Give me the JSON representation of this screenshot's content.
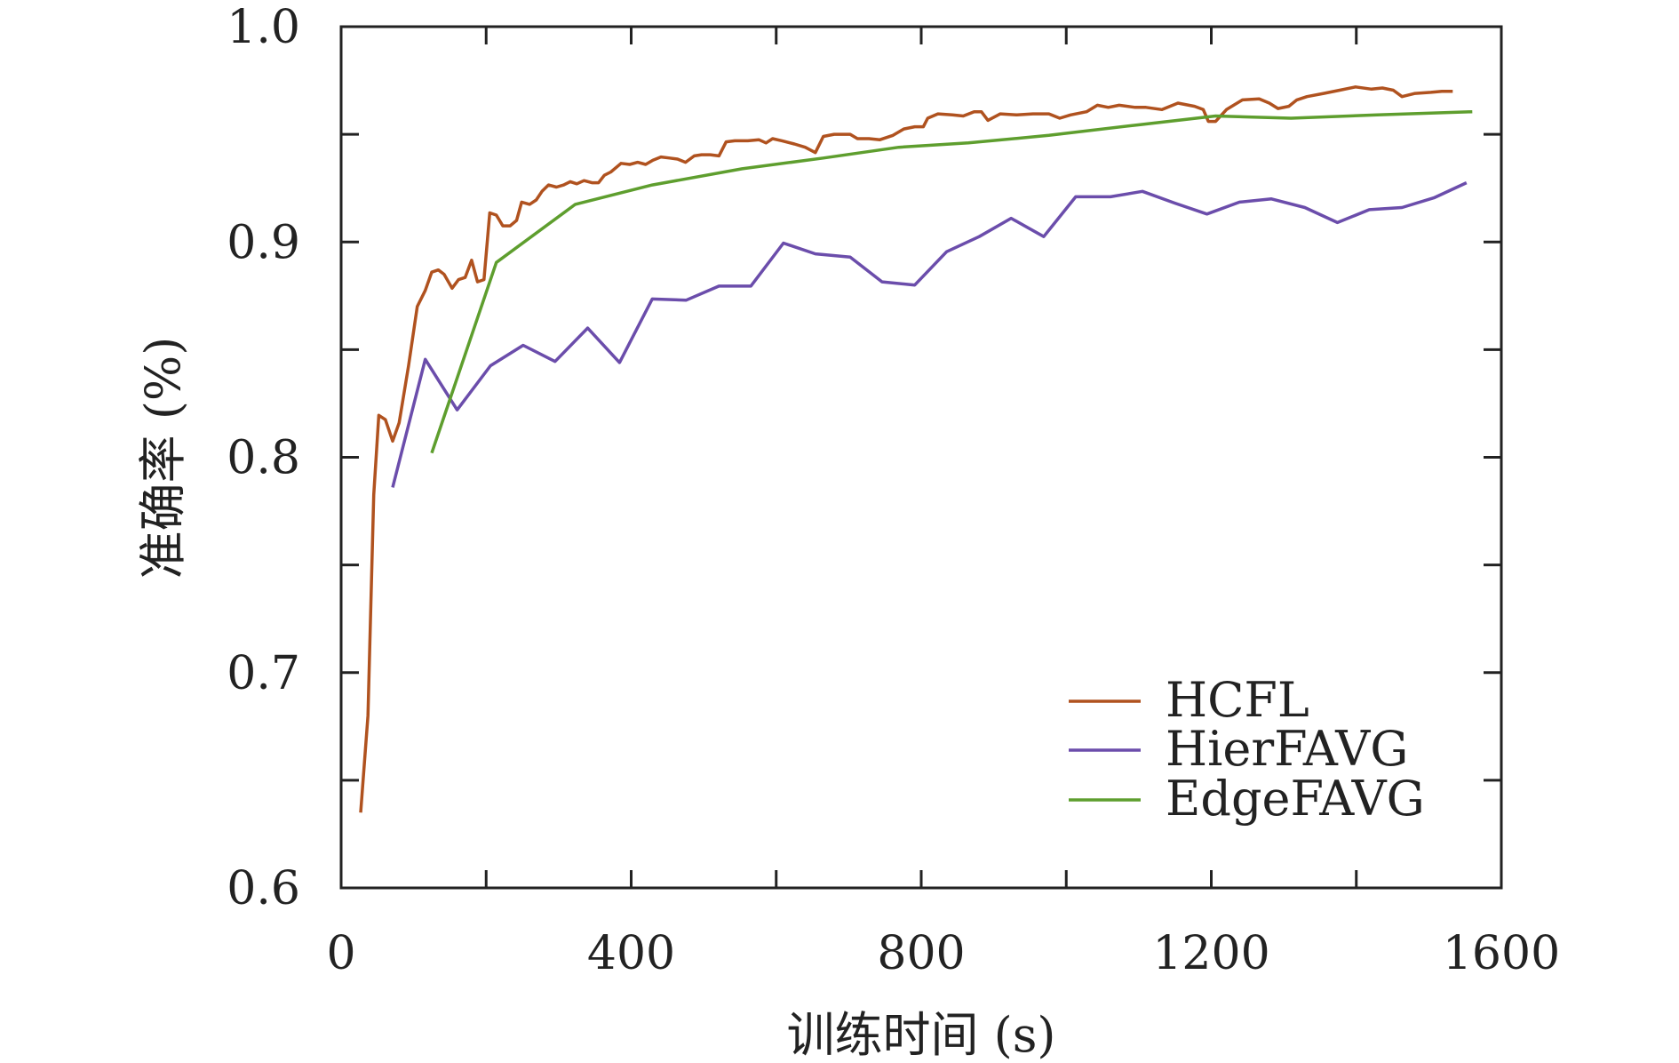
{
  "chart_data": {
    "type": "line",
    "title": "",
    "xlabel": "训练时间 (s)",
    "ylabel": "准确率 (%)",
    "xlim": [
      0,
      1600
    ],
    "ylim": [
      0.6,
      1.0
    ],
    "xticks": [
      "0",
      "400",
      "800",
      "1200",
      "1600"
    ],
    "yticks": [
      "0.6",
      "0.7",
      "0.8",
      "0.9",
      "1.0"
    ],
    "grid": false,
    "legend_position": "bottom-right",
    "series": [
      {
        "name": "HCFL",
        "color": "#B0521F",
        "x": [
          27,
          37,
          45,
          52,
          61,
          71,
          80,
          93,
          105,
          116,
          125,
          134,
          142,
          153,
          162,
          171,
          180,
          188,
          197,
          205,
          214,
          223,
          233,
          242,
          249,
          260,
          269,
          277,
          286,
          297,
          307,
          316,
          325,
          335,
          346,
          355,
          363,
          372,
          386,
          398,
          409,
          420,
          430,
          441,
          453,
          464,
          475,
          487,
          497,
          509,
          521,
          531,
          543,
          561,
          576,
          586,
          595,
          608,
          625,
          640,
          654,
          665,
          680,
          702,
          712,
          728,
          743,
          761,
          776,
          791,
          803,
          809,
          823,
          843,
          858,
          873,
          883,
          892,
          909,
          932,
          954,
          976,
          991,
          1006,
          1028,
          1043,
          1058,
          1073,
          1095,
          1110,
          1132,
          1154,
          1177,
          1189,
          1196,
          1206,
          1221,
          1243,
          1266,
          1280,
          1292,
          1307,
          1318,
          1332,
          1355,
          1377,
          1399,
          1421,
          1436,
          1451,
          1463,
          1481,
          1503,
          1518,
          1533
        ],
        "y": [
          0.635,
          0.68,
          0.7825,
          0.8195,
          0.8175,
          0.8075,
          0.816,
          0.8425,
          0.87,
          0.8775,
          0.886,
          0.887,
          0.885,
          0.8785,
          0.8825,
          0.8835,
          0.8915,
          0.8815,
          0.8825,
          0.9135,
          0.9125,
          0.9075,
          0.9075,
          0.91,
          0.9185,
          0.9175,
          0.9195,
          0.9235,
          0.9265,
          0.9255,
          0.9265,
          0.928,
          0.927,
          0.9285,
          0.9275,
          0.9275,
          0.931,
          0.9325,
          0.9365,
          0.936,
          0.937,
          0.936,
          0.938,
          0.9395,
          0.939,
          0.9385,
          0.937,
          0.94,
          0.9405,
          0.9405,
          0.94,
          0.9465,
          0.947,
          0.947,
          0.9475,
          0.946,
          0.948,
          0.947,
          0.9455,
          0.944,
          0.9415,
          0.949,
          0.95,
          0.95,
          0.948,
          0.948,
          0.9475,
          0.9495,
          0.9525,
          0.9535,
          0.9535,
          0.9575,
          0.9595,
          0.959,
          0.9585,
          0.9605,
          0.9605,
          0.9565,
          0.9595,
          0.959,
          0.9595,
          0.9595,
          0.9575,
          0.959,
          0.9605,
          0.9635,
          0.9625,
          0.9635,
          0.9625,
          0.9625,
          0.9615,
          0.9645,
          0.963,
          0.9615,
          0.956,
          0.956,
          0.9615,
          0.966,
          0.9665,
          0.9645,
          0.962,
          0.963,
          0.966,
          0.9675,
          0.969,
          0.9705,
          0.972,
          0.971,
          0.9715,
          0.9705,
          0.9675,
          0.969,
          0.9695,
          0.97,
          0.97
        ]
      },
      {
        "name": "HierFAVG",
        "color": "#6B4DAB",
        "x": [
          71,
          116,
          160,
          206,
          251,
          295,
          340,
          384,
          429,
          476,
          521,
          565,
          610,
          654,
          702,
          746,
          791,
          835,
          880,
          924,
          969,
          1013,
          1061,
          1105,
          1150,
          1194,
          1239,
          1283,
          1329,
          1374,
          1418,
          1463,
          1507,
          1552
        ],
        "y": [
          0.786,
          0.8455,
          0.822,
          0.8425,
          0.852,
          0.8445,
          0.86,
          0.844,
          0.8735,
          0.873,
          0.8795,
          0.8795,
          0.8995,
          0.8945,
          0.893,
          0.8815,
          0.88,
          0.8955,
          0.9025,
          0.911,
          0.9025,
          0.921,
          0.921,
          0.9235,
          0.918,
          0.913,
          0.9185,
          0.92,
          0.916,
          0.909,
          0.915,
          0.916,
          0.9205,
          0.9275
        ]
      },
      {
        "name": "EdgeFAVG",
        "color": "#5E9E2E",
        "x": [
          125,
          214,
          323,
          429,
          553,
          665,
          769,
          865,
          976,
          1102,
          1206,
          1310,
          1429,
          1560
        ],
        "y": [
          0.802,
          0.8905,
          0.9175,
          0.9265,
          0.934,
          0.939,
          0.944,
          0.946,
          0.9495,
          0.9545,
          0.9585,
          0.9575,
          0.959,
          0.9605
        ]
      }
    ]
  }
}
